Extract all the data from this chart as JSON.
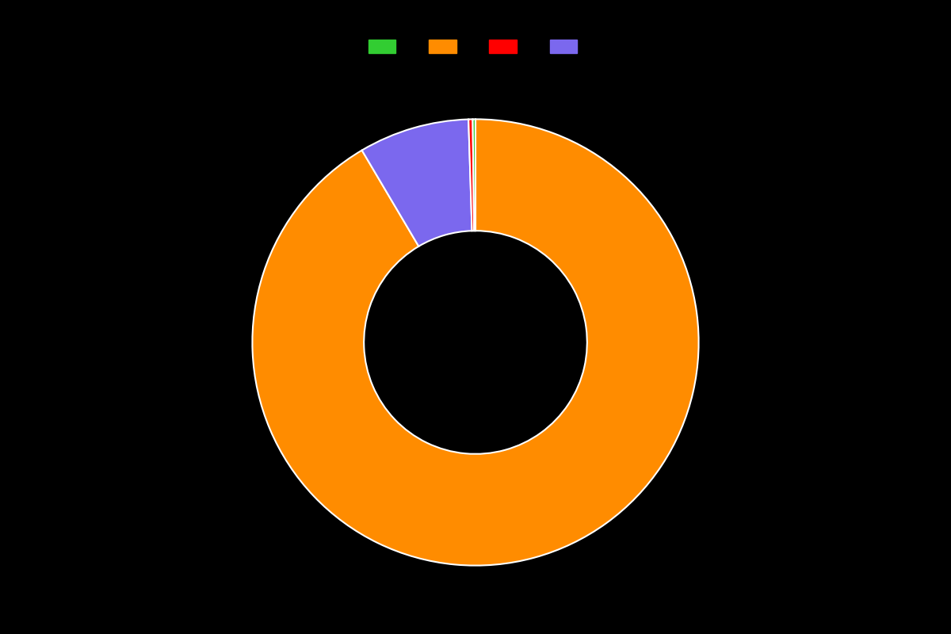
{
  "values": [
    91.5,
    8.0,
    0.3,
    0.2
  ],
  "colors": [
    "#FF8C00",
    "#7B68EE",
    "#FF0000",
    "#32CD32"
  ],
  "legend_colors": [
    "#32CD32",
    "#FF8C00",
    "#FF0000",
    "#7B68EE"
  ],
  "background_color": "#000000",
  "wedge_linewidth": 1.5,
  "wedge_linecolor": "#ffffff",
  "donut_hole": 0.5,
  "startangle": 90
}
